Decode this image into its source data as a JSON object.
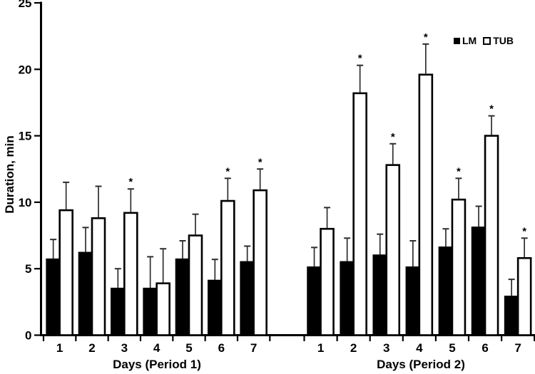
{
  "figure": {
    "background": "#ffffff",
    "axis_color": "#000000",
    "error_bar_color": "#2e2e2e"
  },
  "chart_data": {
    "type": "bar",
    "title": "",
    "ylabel": "Duration, min",
    "ylim": [
      0,
      25
    ],
    "yticks": [
      0,
      5,
      10,
      15,
      20,
      25
    ],
    "grid": false,
    "error_bars": true,
    "significance_marker": "*",
    "legend_position": "top-right",
    "legend": [
      {
        "name": "LM",
        "fill": "#000000"
      },
      {
        "name": "TUB",
        "fill": "#ffffff"
      }
    ],
    "groups": [
      {
        "xlabel": "Days (Period 1)",
        "categories": [
          "1",
          "2",
          "3",
          "4",
          "5",
          "6",
          "7"
        ],
        "series": [
          {
            "name": "LM",
            "values": [
              5.7,
              6.2,
              3.5,
              3.5,
              5.7,
              4.1,
              5.5
            ],
            "errors": [
              1.5,
              1.9,
              1.5,
              2.4,
              1.4,
              1.6,
              1.2
            ],
            "significant": [
              false,
              false,
              false,
              false,
              false,
              false,
              false
            ]
          },
          {
            "name": "TUB",
            "values": [
              9.4,
              8.8,
              9.2,
              3.9,
              7.5,
              10.1,
              10.9
            ],
            "errors": [
              2.1,
              2.4,
              1.8,
              2.6,
              1.6,
              1.7,
              1.6
            ],
            "significant": [
              false,
              false,
              true,
              false,
              false,
              true,
              true
            ]
          }
        ]
      },
      {
        "xlabel": "Days (Period 2)",
        "categories": [
          "1",
          "2",
          "3",
          "4",
          "5",
          "6",
          "7"
        ],
        "series": [
          {
            "name": "LM",
            "values": [
              5.1,
              5.5,
              6.0,
              5.1,
              6.6,
              8.1,
              2.9
            ],
            "errors": [
              1.5,
              1.8,
              1.6,
              2.0,
              1.4,
              1.6,
              1.3
            ],
            "significant": [
              false,
              false,
              false,
              false,
              false,
              false,
              false
            ]
          },
          {
            "name": "TUB",
            "values": [
              8.0,
              18.2,
              12.8,
              19.6,
              10.2,
              15.0,
              5.8
            ],
            "errors": [
              1.6,
              2.1,
              1.6,
              2.3,
              1.6,
              1.5,
              1.5
            ],
            "significant": [
              false,
              true,
              true,
              true,
              true,
              true,
              true
            ]
          }
        ]
      }
    ]
  }
}
